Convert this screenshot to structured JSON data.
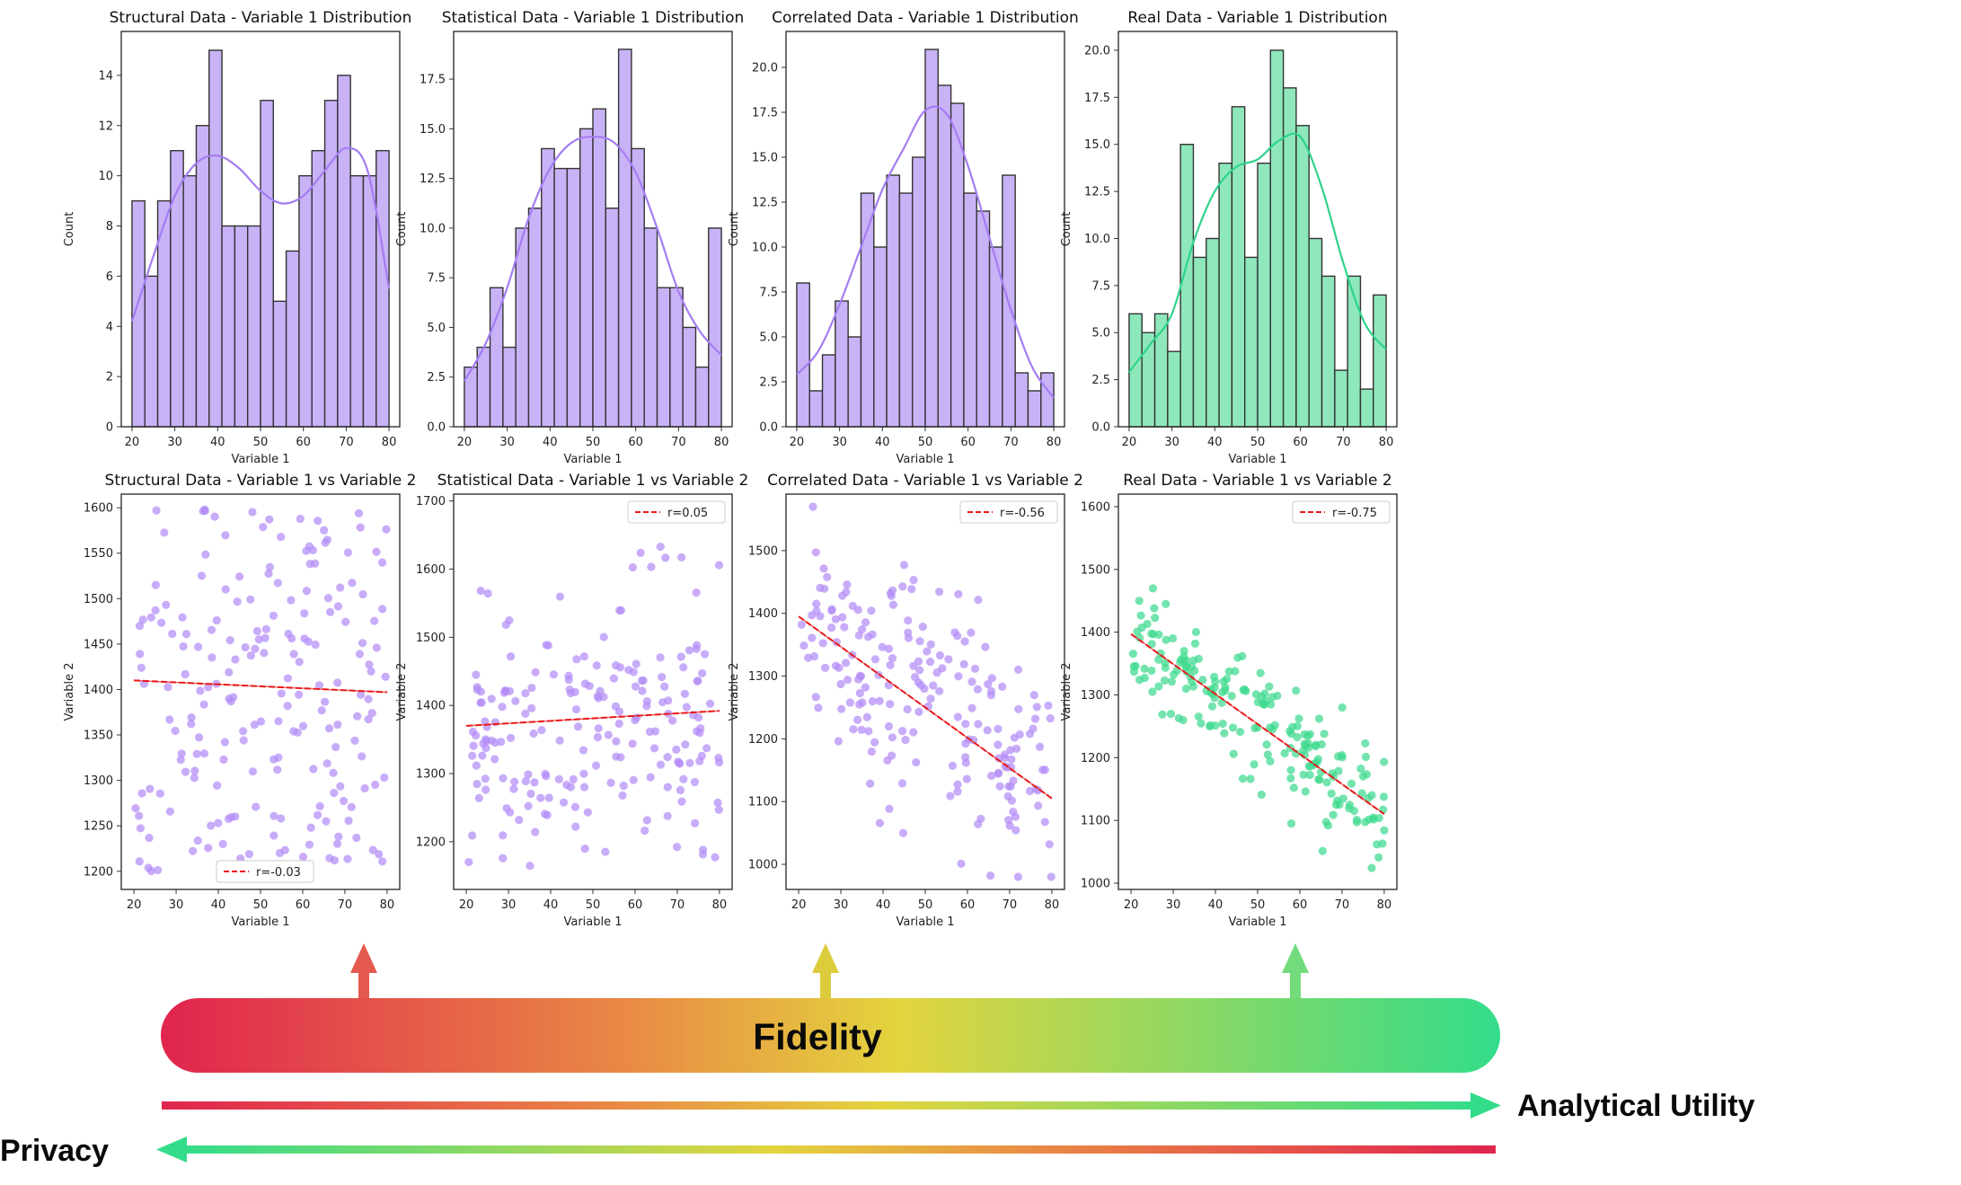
{
  "colors": {
    "purple_fill": "#c9b3f7",
    "purple_line": "#a57cf2",
    "purple_point": "#b38cf6",
    "green_fill": "#8ee8bb",
    "green_line": "#2fd38a",
    "green_point": "#3fd98f",
    "fit_line": "#e81818",
    "bar_edge": "#333333",
    "grad_red": "#e0244e",
    "grad_orange": "#e98a45",
    "grad_yellow": "#e3d43e",
    "grad_green": "#33dc8b"
  },
  "chart_data": [
    {
      "type": "bar",
      "id": "hist-structural",
      "title": "Structural Data - Variable 1 Distribution",
      "xlabel": "Variable 1",
      "ylabel": "Count",
      "xlim": [
        17.5,
        82.5
      ],
      "ylim": [
        0,
        15.75
      ],
      "xticks": [
        "20",
        "30",
        "40",
        "50",
        "60",
        "70",
        "80"
      ],
      "yticks": [
        "0",
        "2",
        "4",
        "6",
        "8",
        "10",
        "12",
        "14"
      ],
      "bin_start": 20,
      "bin_width": 3,
      "values": [
        9,
        6,
        9,
        11,
        10,
        12,
        15,
        8,
        8,
        8,
        13,
        5,
        7,
        10,
        11,
        13,
        14,
        10,
        10,
        11
      ],
      "kde": [
        4.2,
        6.8,
        9.2,
        10.5,
        10.8,
        10.3,
        9.4,
        8.9,
        9.2,
        10.2,
        11.1,
        10.2,
        5.5
      ],
      "color": "purple"
    },
    {
      "type": "bar",
      "id": "hist-statistical",
      "title": "Statistical Data - Variable 1 Distribution",
      "xlabel": "Variable 1",
      "ylabel": "Count",
      "xlim": [
        17.5,
        82.5
      ],
      "ylim": [
        0,
        19.9
      ],
      "xticks": [
        "20",
        "30",
        "40",
        "50",
        "60",
        "70",
        "80"
      ],
      "yticks": [
        "0.0",
        "2.5",
        "5.0",
        "7.5",
        "10.0",
        "12.5",
        "15.0",
        "17.5"
      ],
      "bin_start": 20,
      "bin_width": 3,
      "values": [
        3,
        4,
        7,
        4,
        10,
        11,
        14,
        13,
        13,
        15,
        16,
        11,
        19,
        14,
        10,
        7,
        7,
        5,
        3,
        10
      ],
      "kde": [
        2.3,
        4.2,
        7.0,
        10.5,
        13.0,
        14.3,
        14.6,
        14.3,
        12.8,
        10.0,
        6.8,
        4.8,
        3.6
      ],
      "color": "purple"
    },
    {
      "type": "bar",
      "id": "hist-correlated",
      "title": "Correlated Data - Variable 1 Distribution",
      "xlabel": "Variable 1",
      "ylabel": "Count",
      "xlim": [
        17.5,
        82.5
      ],
      "ylim": [
        0,
        22.0
      ],
      "xticks": [
        "20",
        "30",
        "40",
        "50",
        "60",
        "70",
        "80"
      ],
      "yticks": [
        "0.0",
        "2.5",
        "5.0",
        "7.5",
        "10.0",
        "12.5",
        "15.0",
        "17.5",
        "20.0"
      ],
      "bin_start": 20,
      "bin_width": 3,
      "values": [
        8,
        2,
        4,
        7,
        5,
        13,
        10,
        14,
        13,
        15,
        21,
        19,
        18,
        13,
        12,
        10,
        14,
        3,
        2,
        3
      ],
      "kde": [
        2.9,
        4.2,
        6.8,
        10.0,
        13.2,
        15.5,
        17.6,
        17.4,
        14.5,
        10.5,
        6.5,
        3.3,
        1.6
      ],
      "color": "purple"
    },
    {
      "type": "bar",
      "id": "hist-real",
      "title": "Real Data - Variable 1 Distribution",
      "xlabel": "Variable 1",
      "ylabel": "Count",
      "xlim": [
        17.5,
        82.5
      ],
      "ylim": [
        0,
        21.0
      ],
      "xticks": [
        "20",
        "30",
        "40",
        "50",
        "60",
        "70",
        "80"
      ],
      "yticks": [
        "0.0",
        "2.5",
        "5.0",
        "7.5",
        "10.0",
        "12.5",
        "15.0",
        "17.5",
        "20.0"
      ],
      "bin_start": 20,
      "bin_width": 3,
      "values": [
        6,
        5,
        6,
        4,
        15,
        9,
        10,
        14,
        17,
        9,
        14,
        20,
        18,
        16,
        10,
        8,
        3,
        8,
        2,
        7
      ],
      "kde": [
        2.9,
        4.4,
        6.0,
        9.8,
        12.5,
        13.8,
        14.2,
        15.2,
        15.4,
        12.7,
        8.7,
        5.5,
        4.1
      ],
      "color": "green"
    },
    {
      "type": "scatter",
      "id": "scatter-structural",
      "title": "Structural Data - Variable 1 vs Variable 2",
      "xlabel": "Variable 1",
      "ylabel": "Variable 2",
      "xlim": [
        17,
        83
      ],
      "ylim": [
        1180,
        1615
      ],
      "xticks": [
        "20",
        "30",
        "40",
        "50",
        "60",
        "70",
        "80"
      ],
      "yticks": [
        "1200",
        "1250",
        "1300",
        "1350",
        "1400",
        "1450",
        "1500",
        "1550",
        "1600"
      ],
      "r": -0.03,
      "legend_label": "r=-0.03",
      "legend_position": "bottom-center",
      "fit": {
        "x": [
          20,
          80
        ],
        "y": [
          1410,
          1397
        ]
      },
      "seed": 11,
      "n": 200,
      "slope": 0.0,
      "intercept": 1400,
      "noise": 0,
      "uniform": true,
      "y_range": [
        1200,
        1600
      ],
      "clip": [
        1195,
        1600
      ],
      "color": "purple"
    },
    {
      "type": "scatter",
      "id": "scatter-statistical",
      "title": "Statistical Data - Variable 1 vs Variable 2",
      "xlabel": "Variable 1",
      "ylabel": "Variable 2",
      "xlim": [
        17,
        83
      ],
      "ylim": [
        1130,
        1710
      ],
      "xticks": [
        "20",
        "30",
        "40",
        "50",
        "60",
        "70",
        "80"
      ],
      "yticks": [
        "1200",
        "1300",
        "1400",
        "1500",
        "1600",
        "1700"
      ],
      "r": 0.05,
      "legend_label": "r=0.05",
      "legend_position": "top-right",
      "fit": {
        "x": [
          20,
          80
        ],
        "y": [
          1370,
          1392
        ]
      },
      "seed": 23,
      "n": 200,
      "slope": 0.35,
      "intercept": 1363,
      "noise": 95,
      "uniform": false,
      "clip": [
        1150,
        1690
      ],
      "color": "purple"
    },
    {
      "type": "scatter",
      "id": "scatter-correlated",
      "title": "Correlated Data - Variable 1 vs Variable 2",
      "xlabel": "Variable 1",
      "ylabel": "Variable 2",
      "xlim": [
        17,
        83
      ],
      "ylim": [
        960,
        1590
      ],
      "xticks": [
        "20",
        "30",
        "40",
        "50",
        "60",
        "70",
        "80"
      ],
      "yticks": [
        "1000",
        "1100",
        "1200",
        "1300",
        "1400",
        "1500"
      ],
      "r": -0.56,
      "legend_label": "r=-0.56",
      "legend_position": "top-right",
      "fit": {
        "x": [
          20,
          80
        ],
        "y": [
          1395,
          1105
        ]
      },
      "seed": 37,
      "n": 200,
      "slope": -4.8,
      "intercept": 1491,
      "noise": 95,
      "uniform": false,
      "clip": [
        980,
        1570
      ],
      "color": "purple"
    },
    {
      "type": "scatter",
      "id": "scatter-real",
      "title": "Real Data - Variable 1 vs Variable 2",
      "xlabel": "Variable 1",
      "ylabel": "Variable 2",
      "xlim": [
        17,
        83
      ],
      "ylim": [
        990,
        1620
      ],
      "xticks": [
        "20",
        "30",
        "40",
        "50",
        "60",
        "70",
        "80"
      ],
      "yticks": [
        "1000",
        "1100",
        "1200",
        "1300",
        "1400",
        "1500",
        "1600"
      ],
      "r": -0.75,
      "legend_label": "r=-0.75",
      "legend_position": "top-right",
      "fit": {
        "x": [
          20,
          80
        ],
        "y": [
          1397,
          1110
        ]
      },
      "seed": 53,
      "n": 200,
      "slope": -4.8,
      "intercept": 1493,
      "noise": 45,
      "uniform": false,
      "clip": [
        1010,
        1600
      ],
      "color": "green"
    }
  ],
  "bottom": {
    "fidelity_label": "Fidelity",
    "analytical_utility_label": "Analytical Utility",
    "privacy_label": "Privacy"
  }
}
